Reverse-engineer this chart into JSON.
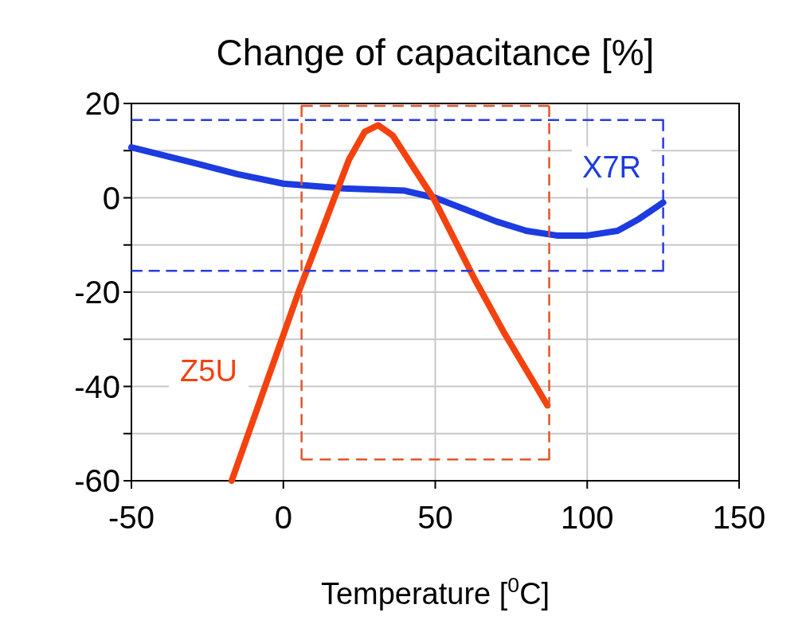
{
  "chart_data": {
    "type": "line",
    "title": "Change of capacitance [%]",
    "xlabel": "Temperature [$^{0}$C]",
    "xlim": [
      -50,
      150
    ],
    "xticks": [
      -50,
      0,
      50,
      100,
      150
    ],
    "ylim": [
      -60,
      20
    ],
    "yticks": [
      -60,
      {
        "value": -50,
        "label": null
      },
      -40,
      {
        "value": -30,
        "label": null
      },
      -20,
      {
        "value": -10,
        "label": null
      },
      0,
      {
        "value": 10,
        "label": null
      },
      20
    ],
    "grid": true,
    "series": [
      {
        "color": "#1c3be0",
        "line_style": "solid",
        "x": [
          -50,
          -30,
          -15,
          0,
          20,
          40,
          50,
          60,
          70,
          80,
          90,
          100,
          110,
          117,
          125
        ],
        "values": [
          10.7,
          7.5,
          5,
          3,
          2,
          1.5,
          0,
          -2.5,
          -5,
          -7,
          -8,
          -8,
          -7,
          -4.5,
          -1
        ]
      },
      {
        "color": "#f4420e",
        "line_style": "solid",
        "x": [
          -17,
          5,
          21.6,
          26.8,
          31.2,
          36,
          49.6,
          63,
          73,
          86.9
        ],
        "values": [
          -60,
          -20,
          8.1,
          14,
          15.4,
          13.2,
          -0.3,
          -17.3,
          -29,
          -44
        ]
      },
      {
        "color": "#2a3be0",
        "line_style": "dashed",
        "x": [
          -50,
          125,
          125,
          -50
        ],
        "values": [
          16.5,
          16.5,
          -15.5,
          -15.5
        ]
      },
      {
        "color": "#e0562a",
        "line_style": "dashed",
        "x": [
          6,
          6,
          87.5
        ],
        "values": [
          -55.5,
          19.5,
          19.5
        ]
      },
      {
        "color": "#e0562a",
        "line_style": "dashed",
        "x": [
          87.5,
          87.5,
          6
        ],
        "values": [
          19.5,
          -55.5,
          -55.5
        ]
      }
    ],
    "annotations": [
      "X7R",
      "Z5U"
    ]
  }
}
